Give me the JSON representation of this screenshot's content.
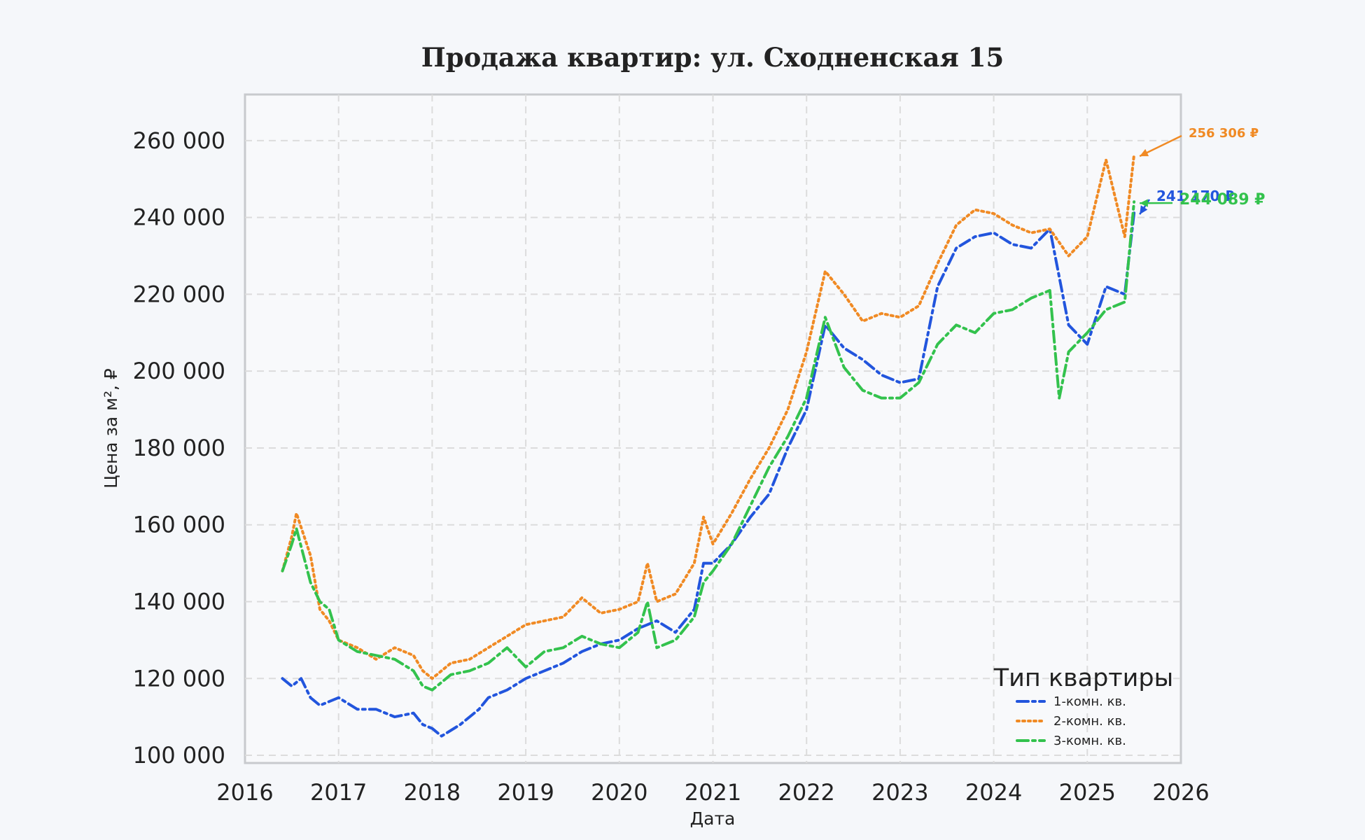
{
  "chart_data": {
    "type": "line",
    "title": "Продажа квартир: ул. Сходненская 15",
    "xlabel": "Дата",
    "ylabel": "Цена за м², ₽",
    "x_ticks": [
      "2016",
      "2017",
      "2018",
      "2019",
      "2020",
      "2021",
      "2022",
      "2023",
      "2024",
      "2025",
      "2026"
    ],
    "y_ticks": [
      "100 000",
      "120 000",
      "140 000",
      "160 000",
      "180 000",
      "200 000",
      "220 000",
      "240 000",
      "260 000"
    ],
    "xlim": [
      2016.0,
      2026.0
    ],
    "ylim": [
      98000,
      272000
    ],
    "grid": true,
    "legend": {
      "title": "Тип квартиры",
      "position": "bottom-right"
    },
    "series": [
      {
        "name": "1-комн. кв.",
        "color": "#2255dd",
        "style": "dash-dot",
        "x": [
          2016.4,
          2016.5,
          2016.6,
          2016.7,
          2016.8,
          2016.9,
          2017.0,
          2017.2,
          2017.4,
          2017.6,
          2017.8,
          2017.9,
          2018.0,
          2018.1,
          2018.3,
          2018.5,
          2018.6,
          2018.8,
          2019.0,
          2019.2,
          2019.4,
          2019.6,
          2019.8,
          2020.0,
          2020.2,
          2020.4,
          2020.6,
          2020.8,
          2020.9,
          2021.0,
          2021.2,
          2021.4,
          2021.6,
          2021.8,
          2022.0,
          2022.2,
          2022.4,
          2022.6,
          2022.8,
          2023.0,
          2023.2,
          2023.4,
          2023.6,
          2023.8,
          2024.0,
          2024.2,
          2024.4,
          2024.6,
          2024.8,
          2025.0,
          2025.2,
          2025.4,
          2025.5
        ],
        "values": [
          120000,
          118000,
          120000,
          115000,
          113000,
          114000,
          115000,
          112000,
          112000,
          110000,
          111000,
          108000,
          107000,
          105000,
          108000,
          112000,
          115000,
          117000,
          120000,
          122000,
          124000,
          127000,
          129000,
          130000,
          133000,
          135000,
          132000,
          138000,
          150000,
          150000,
          155000,
          162000,
          168000,
          180000,
          190000,
          212000,
          206000,
          203000,
          199000,
          197000,
          198000,
          222000,
          232000,
          235000,
          236000,
          233000,
          232000,
          237000,
          212000,
          207000,
          222000,
          220000,
          241170
        ]
      },
      {
        "name": "2-комн. кв.",
        "color": "#f08a24",
        "style": "dotted",
        "x": [
          2016.4,
          2016.5,
          2016.55,
          2016.7,
          2016.8,
          2016.9,
          2017.0,
          2017.2,
          2017.4,
          2017.6,
          2017.8,
          2017.9,
          2018.0,
          2018.2,
          2018.4,
          2018.6,
          2018.8,
          2019.0,
          2019.2,
          2019.4,
          2019.6,
          2019.8,
          2020.0,
          2020.2,
          2020.3,
          2020.4,
          2020.6,
          2020.8,
          2020.9,
          2021.0,
          2021.2,
          2021.4,
          2021.6,
          2021.8,
          2022.0,
          2022.2,
          2022.4,
          2022.6,
          2022.8,
          2023.0,
          2023.2,
          2023.4,
          2023.6,
          2023.8,
          2024.0,
          2024.2,
          2024.4,
          2024.6,
          2024.8,
          2025.0,
          2025.2,
          2025.4,
          2025.5
        ],
        "values": [
          148000,
          157000,
          163000,
          152000,
          138000,
          135000,
          130000,
          128000,
          125000,
          128000,
          126000,
          122000,
          120000,
          124000,
          125000,
          128000,
          131000,
          134000,
          135000,
          136000,
          141000,
          137000,
          138000,
          140000,
          150000,
          140000,
          142000,
          150000,
          162000,
          155000,
          163000,
          172000,
          180000,
          190000,
          205000,
          226000,
          220000,
          213000,
          215000,
          214000,
          217000,
          228000,
          238000,
          242000,
          241000,
          238000,
          236000,
          237000,
          230000,
          235000,
          255000,
          235000,
          256306
        ]
      },
      {
        "name": "3-комн. кв.",
        "color": "#33c24d",
        "style": "dash-dot",
        "x": [
          2016.4,
          2016.5,
          2016.55,
          2016.7,
          2016.8,
          2016.9,
          2017.0,
          2017.2,
          2017.4,
          2017.6,
          2017.8,
          2017.9,
          2018.0,
          2018.2,
          2018.4,
          2018.6,
          2018.8,
          2019.0,
          2019.2,
          2019.4,
          2019.6,
          2019.8,
          2020.0,
          2020.2,
          2020.3,
          2020.4,
          2020.6,
          2020.8,
          2020.9,
          2021.0,
          2021.2,
          2021.4,
          2021.6,
          2021.8,
          2022.0,
          2022.2,
          2022.4,
          2022.6,
          2022.8,
          2023.0,
          2023.2,
          2023.4,
          2023.6,
          2023.8,
          2024.0,
          2024.2,
          2024.4,
          2024.6,
          2024.7,
          2024.8,
          2025.0,
          2025.2,
          2025.4,
          2025.5
        ],
        "values": [
          148000,
          155000,
          159000,
          145000,
          140000,
          138000,
          130000,
          127000,
          126000,
          125000,
          122000,
          118000,
          117000,
          121000,
          122000,
          124000,
          128000,
          123000,
          127000,
          128000,
          131000,
          129000,
          128000,
          132000,
          140000,
          128000,
          130000,
          136000,
          145000,
          148000,
          155000,
          165000,
          175000,
          183000,
          193000,
          214000,
          201000,
          195000,
          193000,
          193000,
          197000,
          207000,
          212000,
          210000,
          215000,
          216000,
          219000,
          221000,
          193000,
          205000,
          210000,
          216000,
          218000,
          244089
        ]
      }
    ],
    "annotations": [
      {
        "text": "256 306 ₽",
        "color": "#f08a24"
      },
      {
        "text": "241 170 ₽",
        "color": "#2255dd"
      },
      {
        "text": "244 089 ₽",
        "color": "#33c24d"
      }
    ]
  }
}
